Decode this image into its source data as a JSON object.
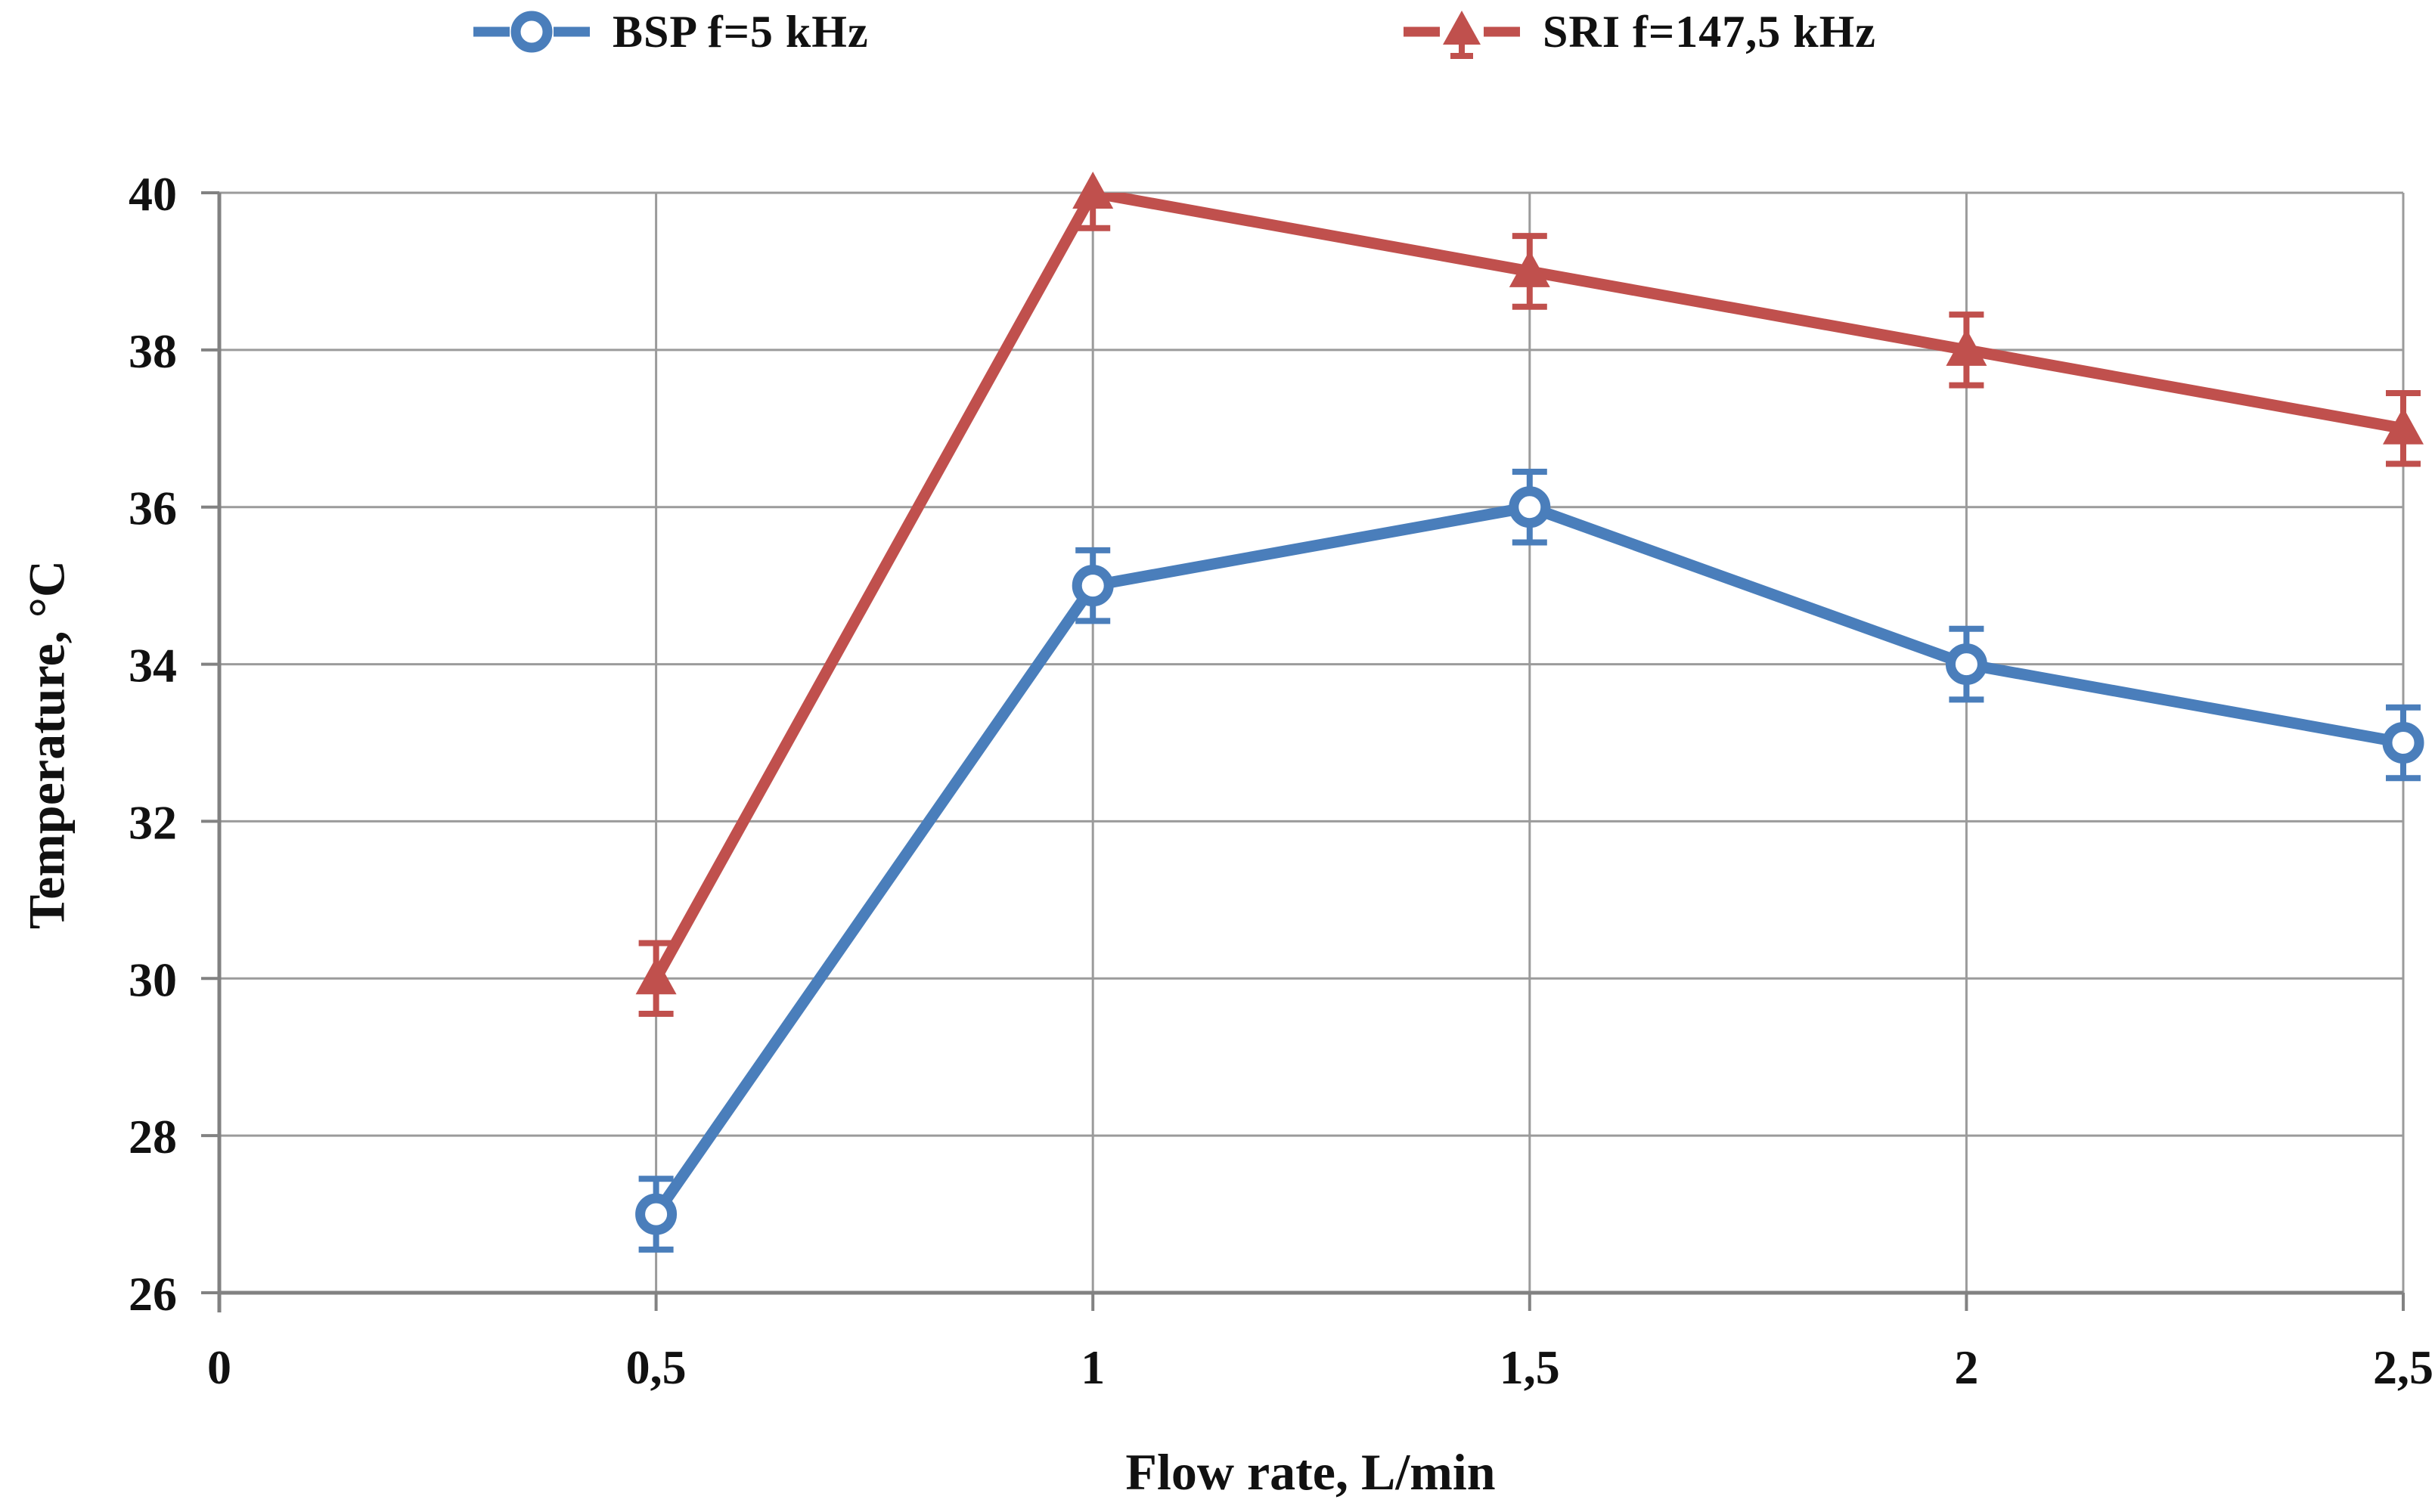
{
  "legend": {
    "position": "top",
    "items": [
      {
        "label": "BSP f=5 kHz",
        "color": "#4A7EBB",
        "marker": "circle",
        "icon": "circle-marker-icon"
      },
      {
        "label": "SRI f=147,5 kHz",
        "color": "#C0504D",
        "marker": "triangle",
        "icon": "triangle-marker-icon"
      }
    ]
  },
  "axes": {
    "x": {
      "title": "Flow rate, L/min",
      "tick_labels": [
        "0",
        "0,5",
        "1",
        "1,5",
        "2",
        "2,5"
      ],
      "tick_values": [
        0,
        0.5,
        1,
        1.5,
        2,
        2.5
      ],
      "range": [
        0,
        2.5
      ]
    },
    "y": {
      "title": "Temperature, °C",
      "tick_labels": [
        "26",
        "28",
        "30",
        "32",
        "34",
        "36",
        "38",
        "40"
      ],
      "tick_values": [
        26,
        28,
        30,
        32,
        34,
        36,
        38,
        40
      ],
      "range": [
        26,
        40
      ]
    }
  },
  "chart_data": {
    "type": "line",
    "title": "",
    "xlabel": "Flow rate, L/min",
    "ylabel": "Temperature, °C",
    "x": [
      0.5,
      1,
      1.5,
      2,
      2.5
    ],
    "xlim": [
      0,
      2.5
    ],
    "ylim": [
      26,
      40
    ],
    "x_tick_labels": [
      "0",
      "0,5",
      "1",
      "1,5",
      "2",
      "2,5"
    ],
    "x_tick_values": [
      0,
      0.5,
      1,
      1.5,
      2,
      2.5
    ],
    "y_tick_values": [
      26,
      28,
      30,
      32,
      34,
      36,
      38,
      40
    ],
    "grid": "on",
    "legend_position": "top",
    "series": [
      {
        "name": "BSP f=5 kHz",
        "slug": "bsp",
        "color": "#4A7EBB",
        "marker": "circle",
        "values": [
          27,
          35,
          36,
          34,
          33
        ],
        "error_bar": 0.45
      },
      {
        "name": "SRI f=147,5 kHz",
        "slug": "sri",
        "color": "#C0504D",
        "marker": "triangle",
        "values": [
          30,
          40,
          39,
          38,
          37
        ],
        "error_bar": 0.45
      }
    ],
    "colors": {
      "gridline": "#9B9B9B",
      "axis": "#828282",
      "text": "#111111",
      "background": "#FFFFFF"
    }
  }
}
